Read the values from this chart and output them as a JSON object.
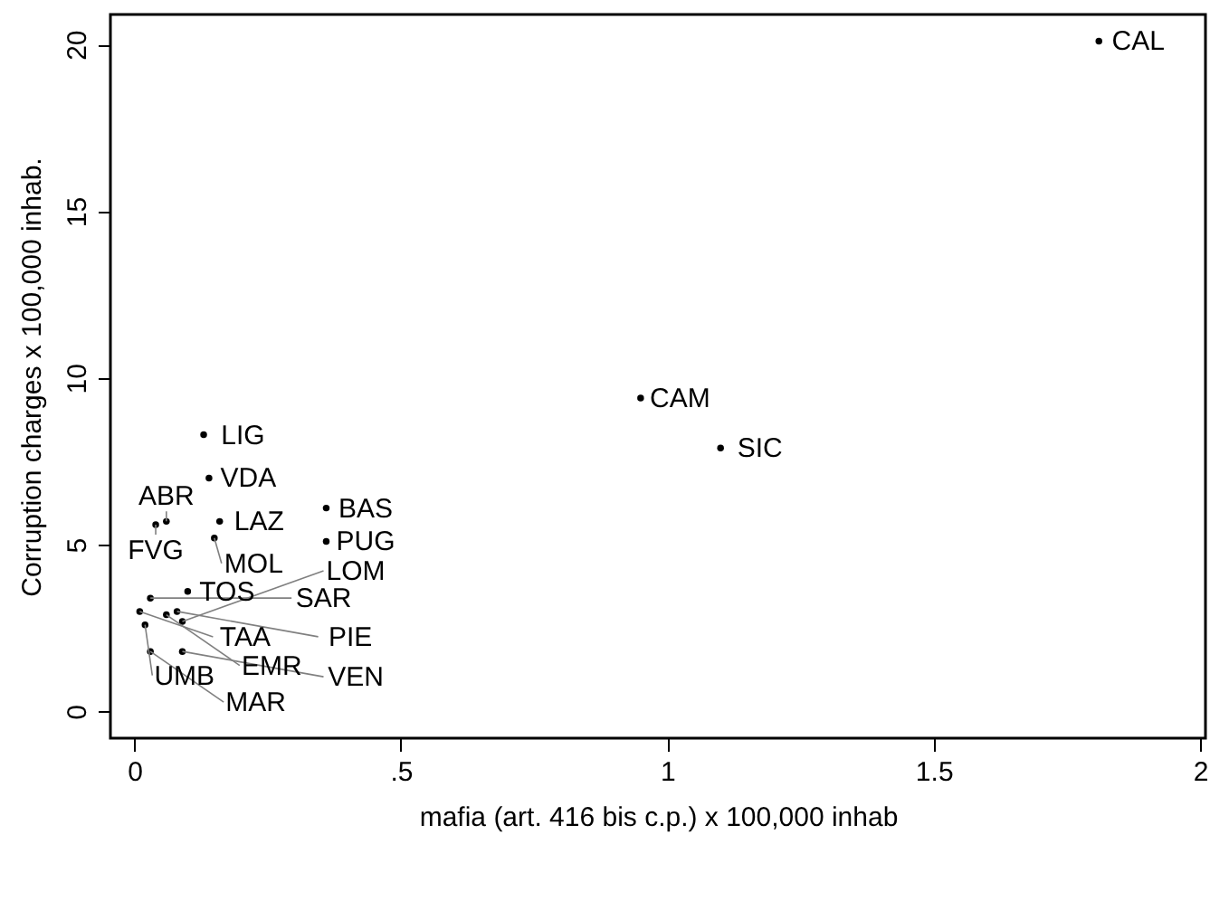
{
  "chart_data": {
    "type": "scatter",
    "xlabel": "mafia (art. 416 bis c.p.) x 100,000 inhab",
    "ylabel": "Corruption charges x 100,000 inhab.",
    "xlim": [
      -0.045,
      2.01
    ],
    "ylim": [
      -0.8,
      20.9
    ],
    "xticks": [
      0,
      {
        "value": 0.5,
        "label": ".5"
      },
      1,
      1.5,
      2
    ],
    "yticks": [
      0,
      5,
      10,
      15,
      20
    ],
    "grid": false,
    "marker": "circle",
    "series": [
      {
        "color": "#000000",
        "x": [
          1.81,
          0.95,
          1.1,
          0.13,
          0.14,
          0.36,
          0.36,
          0.15,
          0.16,
          0.06,
          0.04,
          0.1,
          0.03,
          0.01,
          0.08,
          0.06,
          0.02,
          0.09,
          0.03,
          0.09
        ],
        "values": [
          20.1,
          9.4,
          7.9,
          8.3,
          7.0,
          6.1,
          5.1,
          5.2,
          5.7,
          5.7,
          5.6,
          3.6,
          3.4,
          3.0,
          3.0,
          2.9,
          2.6,
          2.7,
          1.8,
          1.8
        ],
        "value_labels": [
          "CAL",
          "CAM",
          "SIC",
          "LIG",
          "VDA",
          "BAS",
          "PUG",
          "MOL",
          "LAZ",
          "ABR",
          "FVG",
          "TOS",
          "SAR",
          "TAA",
          "PIE",
          "EMR",
          "UMB",
          "LOM",
          "MAR",
          "VEN"
        ]
      }
    ]
  }
}
